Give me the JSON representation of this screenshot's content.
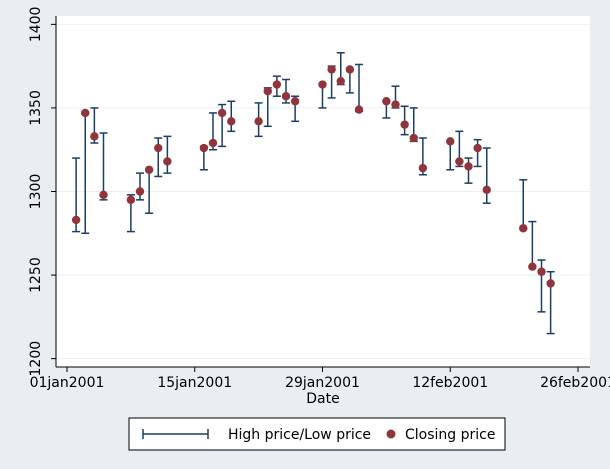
{
  "chart_data": {
    "type": "rcap-scatter",
    "xlabel": "Date",
    "ylabel": "",
    "x_tick_labels": [
      "01jan2001",
      "15jan2001",
      "29jan2001",
      "12feb2001",
      "26feb2001"
    ],
    "x_tick_dates": [
      "2001-01-01",
      "2001-01-15",
      "2001-01-29",
      "2001-02-12",
      "2001-02-26"
    ],
    "xlim": [
      "2001-01-01",
      "2001-02-26"
    ],
    "y_ticks": [
      1200,
      1250,
      1300,
      1350,
      1400
    ],
    "ylim": [
      1195,
      1405
    ],
    "grid": "horizontal",
    "legend_position": "bottom",
    "legend": [
      "High price/Low price",
      "Closing price"
    ],
    "colors": {
      "range": "#1c3e63",
      "close": "#90353b",
      "grid": "#eaf0f4",
      "plot_bg": "#ffffff",
      "outer_bg": "#e9eef3"
    },
    "points": [
      {
        "date": "2001-01-02",
        "high": 1320,
        "low": 1276,
        "close": 1283
      },
      {
        "date": "2001-01-03",
        "high": 1347,
        "low": 1275,
        "close": 1347
      },
      {
        "date": "2001-01-04",
        "high": 1350,
        "low": 1329,
        "close": 1333
      },
      {
        "date": "2001-01-05",
        "high": 1335,
        "low": 1295,
        "close": 1298
      },
      {
        "date": "2001-01-08",
        "high": 1298,
        "low": 1276,
        "close": 1295
      },
      {
        "date": "2001-01-09",
        "high": 1311,
        "low": 1295,
        "close": 1300
      },
      {
        "date": "2001-01-10",
        "high": 1313,
        "low": 1287,
        "close": 1313
      },
      {
        "date": "2001-01-11",
        "high": 1332,
        "low": 1309,
        "close": 1326
      },
      {
        "date": "2001-01-12",
        "high": 1333,
        "low": 1311,
        "close": 1318
      },
      {
        "date": "2001-01-16",
        "high": 1327,
        "low": 1313,
        "close": 1326
      },
      {
        "date": "2001-01-17",
        "high": 1347,
        "low": 1325,
        "close": 1329
      },
      {
        "date": "2001-01-18",
        "high": 1352,
        "low": 1327,
        "close": 1347
      },
      {
        "date": "2001-01-19",
        "high": 1354,
        "low": 1336,
        "close": 1342
      },
      {
        "date": "2001-01-22",
        "high": 1353,
        "low": 1333,
        "close": 1342
      },
      {
        "date": "2001-01-23",
        "high": 1362,
        "low": 1339,
        "close": 1360
      },
      {
        "date": "2001-01-24",
        "high": 1369,
        "low": 1357,
        "close": 1364
      },
      {
        "date": "2001-01-25",
        "high": 1367,
        "low": 1353,
        "close": 1357
      },
      {
        "date": "2001-01-26",
        "high": 1357,
        "low": 1342,
        "close": 1354
      },
      {
        "date": "2001-01-29",
        "high": 1364,
        "low": 1350,
        "close": 1364
      },
      {
        "date": "2001-01-30",
        "high": 1375,
        "low": 1356,
        "close": 1373
      },
      {
        "date": "2001-01-31",
        "high": 1383,
        "low": 1364,
        "close": 1366
      },
      {
        "date": "2001-02-01",
        "high": 1373,
        "low": 1359,
        "close": 1373
      },
      {
        "date": "2001-02-02",
        "high": 1376,
        "low": 1348,
        "close": 1349
      },
      {
        "date": "2001-02-05",
        "high": 1354,
        "low": 1344,
        "close": 1354
      },
      {
        "date": "2001-02-06",
        "high": 1363,
        "low": 1350,
        "close": 1352
      },
      {
        "date": "2001-02-07",
        "high": 1351,
        "low": 1334,
        "close": 1340
      },
      {
        "date": "2001-02-08",
        "high": 1350,
        "low": 1330,
        "close": 1332
      },
      {
        "date": "2001-02-09",
        "high": 1332,
        "low": 1310,
        "close": 1314
      },
      {
        "date": "2001-02-12",
        "high": 1330,
        "low": 1313,
        "close": 1330
      },
      {
        "date": "2001-02-13",
        "high": 1336,
        "low": 1315,
        "close": 1318
      },
      {
        "date": "2001-02-14",
        "high": 1320,
        "low": 1305,
        "close": 1315
      },
      {
        "date": "2001-02-15",
        "high": 1331,
        "low": 1315,
        "close": 1326
      },
      {
        "date": "2001-02-16",
        "high": 1326,
        "low": 1293,
        "close": 1301
      },
      {
        "date": "2001-02-20",
        "high": 1307,
        "low": 1278,
        "close": 1278
      },
      {
        "date": "2001-02-21",
        "high": 1282,
        "low": 1255,
        "close": 1255
      },
      {
        "date": "2001-02-22",
        "high": 1259,
        "low": 1228,
        "close": 1252
      },
      {
        "date": "2001-02-23",
        "high": 1252,
        "low": 1215,
        "close": 1245
      }
    ]
  }
}
